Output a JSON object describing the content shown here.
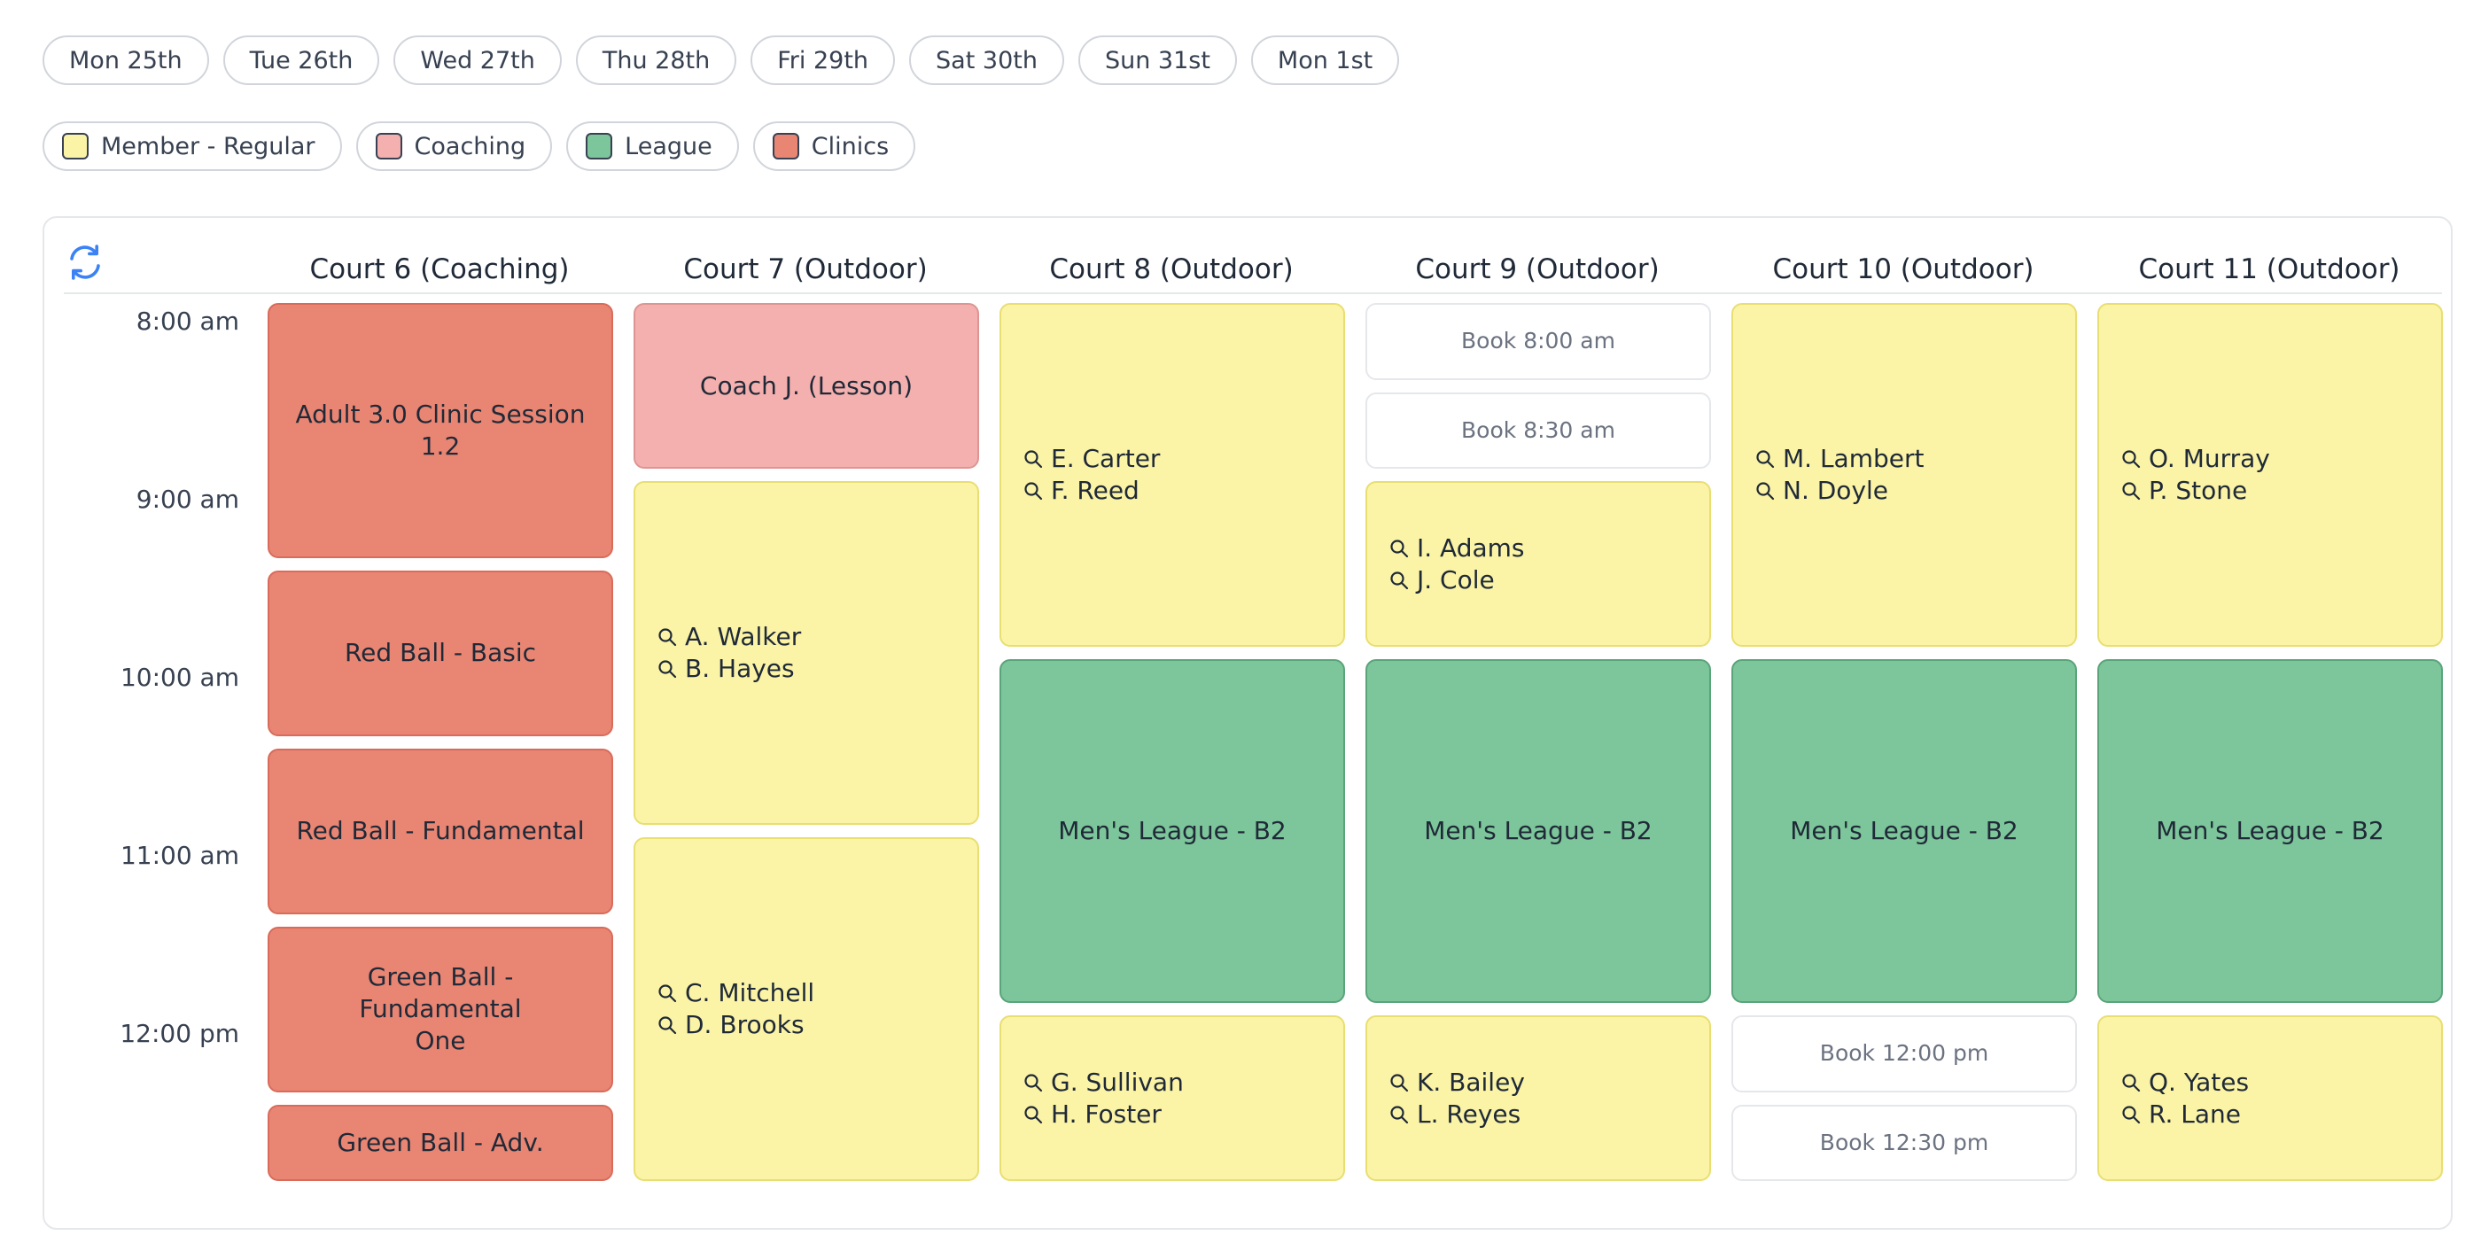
{
  "days": [
    "Mon 25th",
    "Tue 26th",
    "Wed 27th",
    "Thu 28th",
    "Fri 29th",
    "Sat 30th",
    "Sun 31st",
    "Mon 1st"
  ],
  "legend": [
    {
      "label": "Member - Regular",
      "color": "#fbf4a6"
    },
    {
      "label": "Coaching",
      "color": "#f4b0ae"
    },
    {
      "label": "League",
      "color": "#7dc59a"
    },
    {
      "label": "Clinics",
      "color": "#e98573"
    }
  ],
  "icons": {
    "refresh": "refresh-icon",
    "search": "search-icon"
  },
  "courts": [
    "Court 6 (Coaching)",
    "Court 7 (Outdoor)",
    "Court 8 (Outdoor)",
    "Court 9 (Outdoor)",
    "Court 10 (Outdoor)",
    "Court 11 (Outdoor)"
  ],
  "times": [
    "8:00 am",
    "9:00 am",
    "10:00 am",
    "11:00 am",
    "12:00 pm"
  ],
  "bookings": [
    {
      "court": 0,
      "start": "8:00",
      "end": "9:30",
      "type": "clinic",
      "label": "Adult 3.0 Clinic Session 1.2"
    },
    {
      "court": 0,
      "start": "9:30",
      "end": "10:30",
      "type": "clinic",
      "label": "Red Ball - Basic"
    },
    {
      "court": 0,
      "start": "10:30",
      "end": "11:30",
      "type": "clinic",
      "label": "Red Ball - Fundamental"
    },
    {
      "court": 0,
      "start": "11:30",
      "end": "12:30",
      "type": "clinic",
      "label": "Green Ball - Fundamental One"
    },
    {
      "court": 0,
      "start": "12:30",
      "end": "13:00",
      "type": "clinic",
      "label": "Green Ball - Adv."
    },
    {
      "court": 1,
      "start": "8:00",
      "end": "9:00",
      "type": "coach",
      "label": "Coach J. (Lesson)"
    },
    {
      "court": 1,
      "start": "9:00",
      "end": "11:00",
      "type": "member",
      "players": [
        "A. Walker",
        "B. Hayes"
      ]
    },
    {
      "court": 1,
      "start": "11:00",
      "end": "13:00",
      "type": "member",
      "players": [
        "C. Mitchell",
        "D. Brooks"
      ]
    },
    {
      "court": 2,
      "start": "8:00",
      "end": "10:00",
      "type": "member",
      "players": [
        "E. Carter",
        "F. Reed"
      ]
    },
    {
      "court": 2,
      "start": "10:00",
      "end": "12:00",
      "type": "league",
      "label": "Men's League - B2"
    },
    {
      "court": 2,
      "start": "12:00",
      "end": "13:00",
      "type": "member",
      "players": [
        "G. Sullivan",
        "H. Foster"
      ]
    },
    {
      "court": 3,
      "start": "8:00",
      "end": "8:30",
      "type": "book",
      "label": "Book 8:00 am"
    },
    {
      "court": 3,
      "start": "8:30",
      "end": "9:00",
      "type": "book",
      "label": "Book 8:30 am"
    },
    {
      "court": 3,
      "start": "9:00",
      "end": "10:00",
      "type": "member",
      "players": [
        "I. Adams",
        "J. Cole"
      ]
    },
    {
      "court": 3,
      "start": "10:00",
      "end": "12:00",
      "type": "league",
      "label": "Men's League - B2"
    },
    {
      "court": 3,
      "start": "12:00",
      "end": "13:00",
      "type": "member",
      "players": [
        "K. Bailey",
        "L. Reyes"
      ]
    },
    {
      "court": 4,
      "start": "8:00",
      "end": "10:00",
      "type": "member",
      "players": [
        "M. Lambert",
        "N. Doyle"
      ]
    },
    {
      "court": 4,
      "start": "10:00",
      "end": "12:00",
      "type": "league",
      "label": "Men's League - B2"
    },
    {
      "court": 4,
      "start": "12:00",
      "end": "12:30",
      "type": "book",
      "label": "Book 12:00 pm"
    },
    {
      "court": 4,
      "start": "12:30",
      "end": "13:00",
      "type": "book",
      "label": "Book 12:30 pm"
    },
    {
      "court": 5,
      "start": "8:00",
      "end": "10:00",
      "type": "member",
      "players": [
        "O. Murray",
        "P. Stone"
      ]
    },
    {
      "court": 5,
      "start": "10:00",
      "end": "12:00",
      "type": "league",
      "label": "Men's League - B2"
    },
    {
      "court": 5,
      "start": "12:00",
      "end": "13:00",
      "type": "member",
      "players": [
        "Q. Yates",
        "R. Lane"
      ]
    }
  ]
}
